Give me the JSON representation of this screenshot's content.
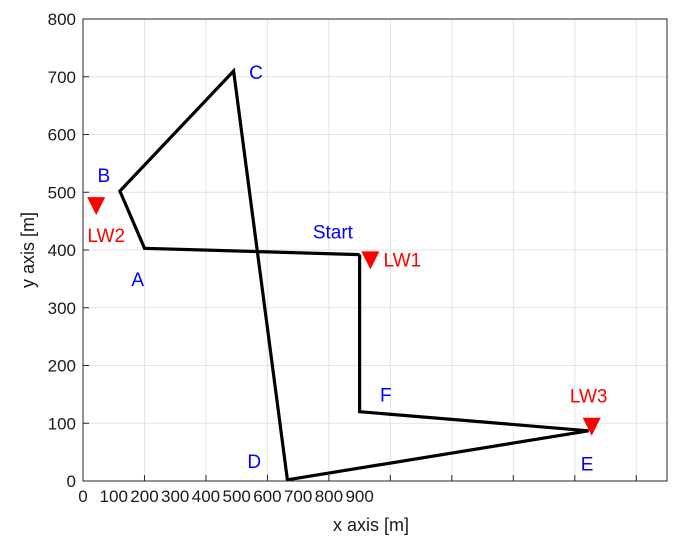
{
  "chart_data": {
    "type": "line",
    "title": "",
    "xlabel": "x axis [m]",
    "ylabel": "y axis [m]",
    "xlim": [
      0,
      1900
    ],
    "ylim": [
      0,
      800
    ],
    "grid": true,
    "x_ticks": [
      {
        "value": 0,
        "label": "0"
      },
      {
        "value": 100,
        "label": "100"
      },
      {
        "value": 200,
        "label": "200"
      },
      {
        "value": 300,
        "label": "300"
      },
      {
        "value": 400,
        "label": "400"
      },
      {
        "value": 500,
        "label": "500"
      },
      {
        "value": 600,
        "label": "600"
      },
      {
        "value": 700,
        "label": "700"
      },
      {
        "value": 800,
        "label": "800"
      },
      {
        "value": 900,
        "label": "900"
      }
    ],
    "x_grid": [
      0,
      200,
      400,
      600,
      800,
      1000,
      1200,
      1400,
      1600,
      1800
    ],
    "y_ticks": [
      {
        "value": 0,
        "label": "0"
      },
      {
        "value": 100,
        "label": "100"
      },
      {
        "value": 200,
        "label": "200"
      },
      {
        "value": 300,
        "label": "300"
      },
      {
        "value": 400,
        "label": "400"
      },
      {
        "value": 500,
        "label": "500"
      },
      {
        "value": 600,
        "label": "600"
      },
      {
        "value": 700,
        "label": "700"
      },
      {
        "value": 800,
        "label": "800"
      }
    ],
    "path": {
      "color": "#000000",
      "points": [
        {
          "x": 900,
          "y": 392
        },
        {
          "x": 200,
          "y": 403
        },
        {
          "x": 120,
          "y": 502
        },
        {
          "x": 490,
          "y": 710
        },
        {
          "x": 665,
          "y": 2
        },
        {
          "x": 1645,
          "y": 87
        },
        {
          "x": 900,
          "y": 120
        },
        {
          "x": 900,
          "y": 392
        }
      ]
    },
    "point_labels": {
      "color": "#0000ff",
      "items": [
        {
          "text": "Start",
          "x": 813,
          "y": 432
        },
        {
          "text": "A",
          "x": 178,
          "y": 350
        },
        {
          "text": "B",
          "x": 68,
          "y": 530
        },
        {
          "text": "C",
          "x": 563,
          "y": 708
        },
        {
          "text": "D",
          "x": 557,
          "y": 35
        },
        {
          "text": "E",
          "x": 1640,
          "y": 30
        },
        {
          "text": "F",
          "x": 985,
          "y": 150
        }
      ]
    },
    "markers": {
      "color": "#ff0000",
      "symbol": "triangle-down",
      "items": [
        {
          "name": "LW1",
          "x": 935,
          "y": 382
        },
        {
          "name": "LW2",
          "x": 43,
          "y": 476
        },
        {
          "name": "LW3",
          "x": 1655,
          "y": 94
        }
      ]
    }
  }
}
